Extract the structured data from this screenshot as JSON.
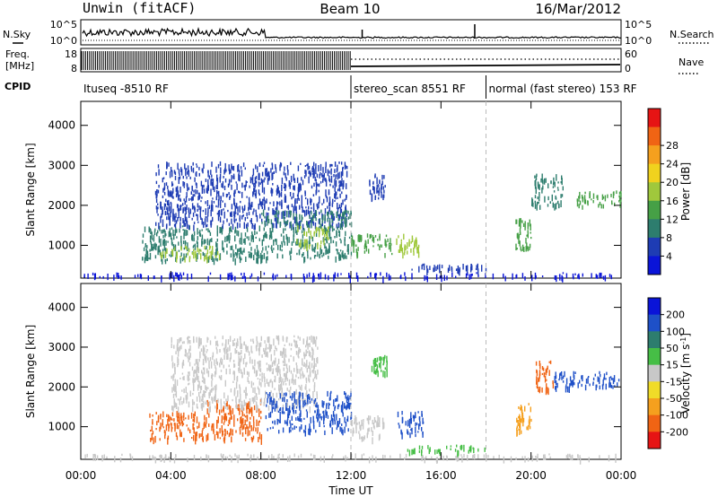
{
  "header": {
    "station": "Unwin (fitACF)",
    "beam": "Beam 10",
    "date": "16/Mar/2012"
  },
  "strip_labels": {
    "nsky": "N.Sky",
    "nsky_ticks": [
      "10^5",
      "10^0"
    ],
    "nsearch": "N.Search",
    "nsearch_ticks": [
      "10^5",
      "10^0"
    ],
    "freq_line1": "Freq.",
    "freq_line2": "[MHz]",
    "freq_ticks": [
      "18",
      "8"
    ],
    "nave": "Nave",
    "nave_ticks": [
      "60",
      "0"
    ],
    "cpid": "CPID"
  },
  "cpid_segments": [
    {
      "label": "Ituseq -8510 RF",
      "start_h": 0,
      "end_h": 12
    },
    {
      "label": "stereo_scan 8551 RF",
      "start_h": 12,
      "end_h": 18
    },
    {
      "label": "normal (fast stereo) 153 RF",
      "start_h": 18,
      "end_h": 24
    }
  ],
  "time_axis": {
    "label": "Time UT",
    "ticks": [
      "00:00",
      "04:00",
      "08:00",
      "12:00",
      "16:00",
      "20:00",
      "00:00"
    ],
    "tick_hours": [
      0,
      4,
      8,
      12,
      16,
      20,
      24
    ],
    "range_h": [
      0,
      24
    ]
  },
  "chart_data": [
    {
      "type": "heatmap",
      "panel": "power",
      "ylabel": "Slant Range [km]",
      "yticks": [
        1000,
        2000,
        3000,
        4000
      ],
      "ylim": [
        180,
        4600
      ],
      "colorbar_label": "Power [dB]",
      "colorbar_ticks": [
        4,
        8,
        12,
        16,
        20,
        24,
        28
      ],
      "colorbar_colors": [
        "#0a14d8",
        "#1e3cb4",
        "#2d7d6e",
        "#46a046",
        "#a0c83c",
        "#f0d21e",
        "#f5a01e",
        "#f06414",
        "#e61414"
      ],
      "regions": [
        {
          "t0": 0.0,
          "t1": 24.0,
          "r0": 220,
          "r1": 330,
          "level": 4
        },
        {
          "t0": 2.7,
          "t1": 8.0,
          "r0": 650,
          "r1": 1500,
          "level": 12
        },
        {
          "t0": 3.5,
          "t1": 6.2,
          "r0": 700,
          "r1": 1000,
          "level": 20
        },
        {
          "t0": 3.3,
          "t1": 11.8,
          "r0": 1500,
          "r1": 3100,
          "level": 5
        },
        {
          "t0": 8.0,
          "t1": 12.0,
          "r0": 700,
          "r1": 1900,
          "level": 9
        },
        {
          "t0": 9.5,
          "t1": 11.0,
          "r0": 1000,
          "r1": 1500,
          "level": 18
        },
        {
          "t0": 12.0,
          "t1": 13.8,
          "r0": 800,
          "r1": 1300,
          "level": 14
        },
        {
          "t0": 12.8,
          "t1": 13.5,
          "r0": 2200,
          "r1": 2800,
          "level": 8
        },
        {
          "t0": 14.0,
          "t1": 15.0,
          "r0": 800,
          "r1": 1300,
          "level": 20
        },
        {
          "t0": 19.3,
          "t1": 20.0,
          "r0": 900,
          "r1": 1700,
          "level": 14
        },
        {
          "t0": 20.0,
          "t1": 21.4,
          "r0": 2000,
          "r1": 2800,
          "level": 12
        },
        {
          "t0": 22.0,
          "t1": 24.0,
          "r0": 2000,
          "r1": 2400,
          "level": 16
        },
        {
          "t0": 14.5,
          "t1": 18.0,
          "r0": 400,
          "r1": 550,
          "level": 6
        }
      ]
    },
    {
      "type": "heatmap",
      "panel": "velocity",
      "ylabel": "Slant Range [km]",
      "yticks": [
        1000,
        2000,
        3000,
        4000
      ],
      "ylim": [
        180,
        4600
      ],
      "colorbar_label": "Velocity [m s^-1]",
      "colorbar_ticks": [
        200,
        100,
        50,
        15,
        -15,
        -50,
        -100,
        -200
      ],
      "colorbar_colors": [
        "#0a14d8",
        "#1e50c8",
        "#2d7d6e",
        "#46be46",
        "#c8c8c8",
        "#f0dc28",
        "#f5a01e",
        "#f06414",
        "#e61414"
      ],
      "regions": [
        {
          "t0": 0.0,
          "t1": 24.0,
          "r0": 220,
          "r1": 330,
          "level": 0
        },
        {
          "t0": 3.0,
          "t1": 5.5,
          "r0": 700,
          "r1": 1400,
          "level": -180
        },
        {
          "t0": 5.5,
          "t1": 8.0,
          "r0": 700,
          "r1": 1700,
          "level": -120
        },
        {
          "t0": 4.0,
          "t1": 10.5,
          "r0": 1500,
          "r1": 3300,
          "level": 0
        },
        {
          "t0": 8.2,
          "t1": 12.0,
          "r0": 900,
          "r1": 1900,
          "level": 180
        },
        {
          "t0": 12.0,
          "t1": 13.5,
          "r0": 700,
          "r1": 1300,
          "level": 0
        },
        {
          "t0": 12.9,
          "t1": 13.6,
          "r0": 2400,
          "r1": 2800,
          "level": 30
        },
        {
          "t0": 14.0,
          "t1": 15.2,
          "r0": 800,
          "r1": 1400,
          "level": 180
        },
        {
          "t0": 19.3,
          "t1": 20.0,
          "r0": 900,
          "r1": 1600,
          "level": -60
        },
        {
          "t0": 20.2,
          "t1": 21.0,
          "r0": 1900,
          "r1": 2700,
          "level": -160
        },
        {
          "t0": 21.0,
          "t1": 24.0,
          "r0": 2000,
          "r1": 2400,
          "level": 180
        },
        {
          "t0": 14.5,
          "t1": 18.0,
          "r0": 400,
          "r1": 550,
          "level": 30
        }
      ]
    }
  ]
}
